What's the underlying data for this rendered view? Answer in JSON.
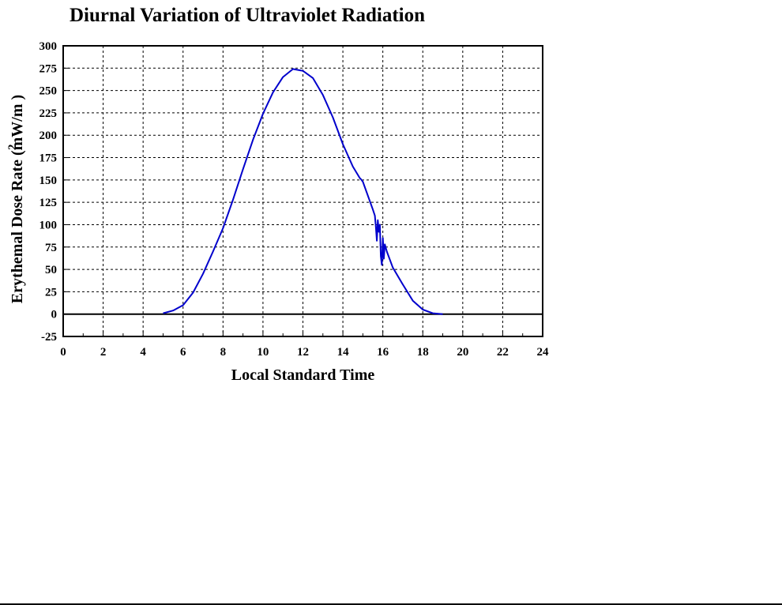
{
  "chart_data": {
    "type": "line",
    "title": "Diurnal Variation of Ultraviolet Radiation",
    "xlabel": "Local Standard Time",
    "ylabel": "Erythemal Dose Rate (mW/m )",
    "ylabel_superscript": "2",
    "xlim": [
      0,
      24
    ],
    "ylim": [
      -25,
      300
    ],
    "xticks": [
      "0",
      "2",
      "4",
      "6",
      "8",
      "10",
      "12",
      "14",
      "16",
      "18",
      "20",
      "22",
      "24"
    ],
    "yticks": [
      "300",
      "275",
      "250",
      "225",
      "200",
      "175",
      "150",
      "125",
      "100",
      "75",
      "50",
      "25",
      "0",
      "-25"
    ],
    "grid": true,
    "series": [
      {
        "color": "#0000cc",
        "x": [
          5.0,
          5.5,
          6.0,
          6.5,
          7.0,
          7.5,
          8.0,
          8.5,
          9.0,
          9.5,
          10.0,
          10.5,
          11.0,
          11.5,
          12.0,
          12.5,
          13.0,
          13.5,
          14.0,
          14.5,
          14.85,
          14.9,
          15.0,
          15.5,
          15.6,
          15.65,
          15.7,
          15.75,
          15.8,
          15.85,
          15.9,
          15.95,
          16.0,
          16.05,
          16.1,
          16.2,
          16.5,
          17.0,
          17.5,
          18.0,
          18.5,
          19.0
        ],
        "y": [
          1,
          4,
          10,
          24,
          45,
          70,
          96,
          128,
          162,
          195,
          224,
          248,
          265,
          274,
          272,
          264,
          245,
          220,
          190,
          165,
          152,
          151,
          148,
          117,
          110,
          98,
          82,
          105,
          92,
          100,
          65,
          55,
          85,
          62,
          78,
          70,
          52,
          33,
          15,
          5,
          1,
          0
        ]
      }
    ]
  }
}
